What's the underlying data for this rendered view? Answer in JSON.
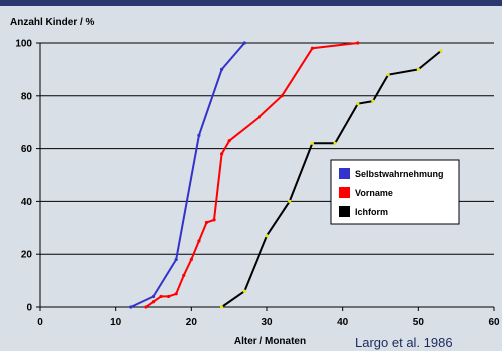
{
  "chart_data": {
    "type": "line",
    "ylabel": "Anzahl Kinder / %",
    "xlabel": "Alter  / Monaten",
    "credit": "Largo et al. 1986",
    "xlim": [
      0,
      60
    ],
    "ylim": [
      0,
      100
    ],
    "xticks": [
      0,
      10,
      20,
      30,
      40,
      50,
      60
    ],
    "xtick_labels": [
      "0",
      "10",
      "20",
      "30",
      "40",
      "50",
      "60"
    ],
    "yticks": [
      0,
      20,
      40,
      60,
      80,
      100
    ],
    "ytick_labels": [
      "0",
      "20",
      "40",
      "60",
      "80",
      "100"
    ],
    "grid": "horizontal",
    "legend_placement": "inside-right",
    "series": [
      {
        "name": "Selbstwahrnehmung",
        "color": "#3333cc",
        "points": [
          [
            12,
            0
          ],
          [
            15,
            4
          ],
          [
            18,
            18
          ],
          [
            21,
            65
          ],
          [
            24,
            90
          ],
          [
            27,
            100
          ]
        ]
      },
      {
        "name": "Vorname",
        "color": "#ff0000",
        "points": [
          [
            14,
            0
          ],
          [
            15,
            2
          ],
          [
            16,
            4
          ],
          [
            17,
            4
          ],
          [
            18,
            5
          ],
          [
            19,
            12
          ],
          [
            20,
            18
          ],
          [
            21,
            25
          ],
          [
            22,
            32
          ],
          [
            23,
            33
          ],
          [
            24,
            58
          ],
          [
            25,
            63
          ],
          [
            29,
            72
          ],
          [
            32,
            80
          ],
          [
            36,
            98
          ],
          [
            42,
            100
          ]
        ]
      },
      {
        "name": "Ichform",
        "color": "#000000",
        "points": [
          [
            24,
            0
          ],
          [
            27,
            6
          ],
          [
            30,
            27
          ],
          [
            33,
            40
          ],
          [
            36,
            62
          ],
          [
            39,
            62
          ],
          [
            42,
            77
          ],
          [
            44,
            78
          ],
          [
            46,
            88
          ],
          [
            50,
            90
          ],
          [
            53,
            97
          ]
        ]
      }
    ]
  }
}
